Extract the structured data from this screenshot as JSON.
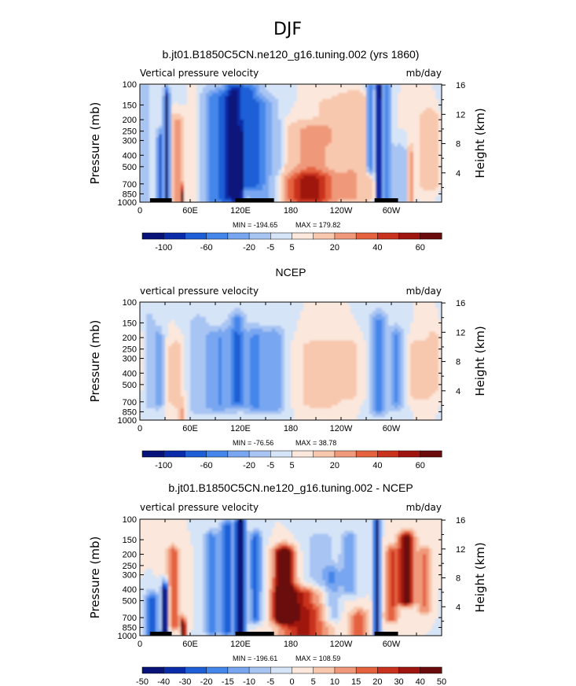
{
  "figure": {
    "title": "DJF"
  },
  "palettes": {
    "standard": [
      "#08137a",
      "#0b2ca8",
      "#1f5fd6",
      "#4586ea",
      "#78a6f0",
      "#a7c4f3",
      "#d6e4f7",
      "#fbe7dc",
      "#f8c8ae",
      "#f0997a",
      "#e5623f",
      "#c9331e",
      "#9f1510",
      "#6b0c0c"
    ],
    "difference": [
      "#08137a",
      "#0b2ca8",
      "#1f5fd6",
      "#4586ea",
      "#78a6f0",
      "#a7c4f3",
      "#d6e4f7",
      "#fbe7dc",
      "#f8c8ae",
      "#f0997a",
      "#e5623f",
      "#c9331e",
      "#9f1510",
      "#6b0c0c"
    ]
  },
  "chart_data": [
    {
      "type": "heatmap",
      "name": "model",
      "title": "b.jt01.B1850C5CN.ne120_g16.tuning.002 (yrs 1860)",
      "variable_label": "Vertical pressure velocity",
      "units": "mb/day",
      "ylabel": "Pressure (mb)",
      "ylabel_right": "Height (km)",
      "pressure_ticks": [
        "100",
        "150",
        "200",
        "250",
        "300",
        "400",
        "500",
        "700",
        "850",
        "1000"
      ],
      "pressure_values": [
        100,
        150,
        200,
        250,
        300,
        400,
        500,
        700,
        850,
        1000
      ],
      "height_ticks": [
        "16",
        "12",
        "8",
        "4"
      ],
      "height_values": [
        16,
        12,
        8,
        4
      ],
      "lon_ticks": [
        "0",
        "60E",
        "120E",
        "180",
        "120W",
        "60W"
      ],
      "lon_values": [
        0,
        60,
        120,
        180,
        240,
        300
      ],
      "xlim": [
        0,
        360
      ],
      "ylim": [
        1000,
        100
      ],
      "min_label": "MIN = -194.65",
      "max_label": "MAX = 179.82",
      "colorbar": {
        "palette": "standard",
        "labels": [
          "-100",
          "-60",
          "-20",
          "-5",
          "5",
          "20",
          "40",
          "60"
        ],
        "label_bounds": [
          1,
          3,
          5,
          6,
          7,
          9,
          11,
          13
        ]
      },
      "terrain_lon": [
        [
          12,
          38
        ],
        [
          114,
          160
        ],
        [
          280,
          308
        ]
      ],
      "features": [
        {
          "lon": 6,
          "plo": 100,
          "phi": 1000,
          "w": 5,
          "v": -16
        },
        {
          "lon": 24,
          "plo": 300,
          "phi": 1000,
          "w": 3,
          "v": -80
        },
        {
          "lon": 32,
          "plo": 130,
          "phi": 1000,
          "w": 3,
          "v": -110
        },
        {
          "lon": 44,
          "plo": 220,
          "phi": 1000,
          "w": 6,
          "v": 30
        },
        {
          "lon": 51,
          "plo": 850,
          "phi": 1000,
          "w": 2,
          "v": 55
        },
        {
          "lon": 70,
          "plo": 130,
          "phi": 950,
          "w": 10,
          "v": 10
        },
        {
          "lon": 95,
          "plo": 130,
          "phi": 980,
          "w": 20,
          "v": -55
        },
        {
          "lon": 112,
          "plo": 110,
          "phi": 900,
          "w": 10,
          "v": -80
        },
        {
          "lon": 118,
          "plo": 300,
          "phi": 1000,
          "w": 4,
          "v": -130
        },
        {
          "lon": 130,
          "plo": 110,
          "phi": 700,
          "w": 12,
          "v": -60
        },
        {
          "lon": 145,
          "plo": 150,
          "phi": 950,
          "w": 14,
          "v": -40
        },
        {
          "lon": 165,
          "plo": 250,
          "phi": 1000,
          "w": 8,
          "v": -10
        },
        {
          "lon": 205,
          "plo": 250,
          "phi": 900,
          "w": 28,
          "v": 25
        },
        {
          "lon": 222,
          "plo": 150,
          "phi": 300,
          "w": 14,
          "v": 6
        },
        {
          "lon": 200,
          "plo": 650,
          "phi": 1000,
          "w": 35,
          "v": 32
        },
        {
          "lon": 255,
          "plo": 140,
          "phi": 900,
          "w": 20,
          "v": 18
        },
        {
          "lon": 275,
          "plo": 100,
          "phi": 500,
          "w": 4,
          "v": -55
        },
        {
          "lon": 285,
          "plo": 100,
          "phi": 1000,
          "w": 3,
          "v": -140
        },
        {
          "lon": 294,
          "plo": 100,
          "phi": 1000,
          "w": 5,
          "v": -50
        },
        {
          "lon": 310,
          "plo": 400,
          "phi": 1000,
          "w": 8,
          "v": -20
        },
        {
          "lon": 323,
          "plo": 400,
          "phi": 1000,
          "w": 3,
          "v": 30
        },
        {
          "lon": 345,
          "plo": 200,
          "phi": 700,
          "w": 10,
          "v": 20
        }
      ]
    },
    {
      "type": "heatmap",
      "name": "obs",
      "title": "NCEP",
      "variable_label": "vertical pressure velocity",
      "units": "mb/day",
      "ylabel": "Pressure (mb)",
      "ylabel_right": "Height (km)",
      "pressure_ticks": [
        "100",
        "150",
        "200",
        "250",
        "300",
        "400",
        "500",
        "700",
        "850",
        "1000"
      ],
      "pressure_values": [
        100,
        150,
        200,
        250,
        300,
        400,
        500,
        700,
        850,
        1000
      ],
      "height_ticks": [
        "16",
        "12",
        "8",
        "4"
      ],
      "height_values": [
        16,
        12,
        8,
        4
      ],
      "lon_ticks": [
        "0",
        "60E",
        "120E",
        "180",
        "120W",
        "60W"
      ],
      "lon_values": [
        0,
        60,
        120,
        180,
        240,
        300
      ],
      "xlim": [
        0,
        360
      ],
      "ylim": [
        1000,
        100
      ],
      "min_label": "MIN = -76.56",
      "max_label": "MAX = 38.78",
      "colorbar": {
        "palette": "standard",
        "labels": [
          "-100",
          "-60",
          "-20",
          "-5",
          "5",
          "20",
          "40",
          "60"
        ],
        "label_bounds": [
          1,
          3,
          5,
          6,
          7,
          9,
          11,
          13
        ]
      },
      "terrain_lon": [],
      "features": [
        {
          "lon": 12,
          "plo": 150,
          "phi": 700,
          "w": 6,
          "v": -12
        },
        {
          "lon": 22,
          "plo": 200,
          "phi": 700,
          "w": 5,
          "v": -28
        },
        {
          "lon": 42,
          "plo": 250,
          "phi": 700,
          "w": 8,
          "v": 10
        },
        {
          "lon": 50,
          "plo": 850,
          "phi": 1000,
          "w": 3,
          "v": 25
        },
        {
          "lon": 70,
          "plo": 150,
          "phi": 800,
          "w": 10,
          "v": -10
        },
        {
          "lon": 95,
          "plo": 200,
          "phi": 750,
          "w": 16,
          "v": -40
        },
        {
          "lon": 116,
          "plo": 150,
          "phi": 700,
          "w": 8,
          "v": -55
        },
        {
          "lon": 138,
          "plo": 200,
          "phi": 750,
          "w": 14,
          "v": -45
        },
        {
          "lon": 160,
          "plo": 200,
          "phi": 750,
          "w": 10,
          "v": -35
        },
        {
          "lon": 215,
          "plo": 250,
          "phi": 700,
          "w": 20,
          "v": 14
        },
        {
          "lon": 248,
          "plo": 250,
          "phi": 600,
          "w": 14,
          "v": 10
        },
        {
          "lon": 285,
          "plo": 150,
          "phi": 800,
          "w": 8,
          "v": -45
        },
        {
          "lon": 305,
          "plo": 200,
          "phi": 700,
          "w": 7,
          "v": -42
        },
        {
          "lon": 335,
          "plo": 250,
          "phi": 600,
          "w": 14,
          "v": 12
        },
        {
          "lon": 350,
          "plo": 200,
          "phi": 500,
          "w": 8,
          "v": 8
        }
      ]
    },
    {
      "type": "heatmap",
      "name": "diff",
      "title": "b.jt01.B1850C5CN.ne120_g16.tuning.002 - NCEP",
      "variable_label": "vertical pressure velocity",
      "units": "mb/day",
      "ylabel": "Pressure (mb)",
      "ylabel_right": "Height (km)",
      "pressure_ticks": [
        "100",
        "150",
        "200",
        "250",
        "300",
        "400",
        "500",
        "700",
        "850",
        "1000"
      ],
      "pressure_values": [
        100,
        150,
        200,
        250,
        300,
        400,
        500,
        700,
        850,
        1000
      ],
      "height_ticks": [
        "16",
        "12",
        "8",
        "4"
      ],
      "height_values": [
        16,
        12,
        8,
        4
      ],
      "lon_ticks": [
        "0",
        "60E",
        "120E",
        "180",
        "120W",
        "60W"
      ],
      "lon_values": [
        0,
        60,
        120,
        180,
        240,
        300
      ],
      "xlim": [
        0,
        360
      ],
      "ylim": [
        1000,
        100
      ],
      "min_label": "MIN = -196.61",
      "max_label": "MAX = 108.59",
      "colorbar": {
        "palette": "difference",
        "labels": [
          "-50",
          "-40",
          "-30",
          "-20",
          "-15",
          "-10",
          "-5",
          "0",
          "5",
          "10",
          "15",
          "20",
          "30",
          "40",
          "50"
        ],
        "label_bounds": [
          0,
          1,
          2,
          3,
          4,
          5,
          6,
          7,
          8,
          9,
          10,
          11,
          12,
          13,
          14
        ]
      },
      "terrain_lon": [
        [
          12,
          38
        ],
        [
          114,
          160
        ],
        [
          280,
          308
        ]
      ],
      "features": [
        {
          "lon": 14,
          "plo": 500,
          "phi": 1000,
          "w": 8,
          "v": -25
        },
        {
          "lon": 30,
          "plo": 400,
          "phi": 1000,
          "w": 4,
          "v": -40
        },
        {
          "lon": 40,
          "plo": 200,
          "phi": 800,
          "w": 8,
          "v": 20
        },
        {
          "lon": 52,
          "plo": 850,
          "phi": 1000,
          "w": 3,
          "v": 45
        },
        {
          "lon": 85,
          "plo": 150,
          "phi": 900,
          "w": 8,
          "v": -20
        },
        {
          "lon": 104,
          "plo": 120,
          "phi": 900,
          "w": 8,
          "v": -25
        },
        {
          "lon": 120,
          "plo": 100,
          "phi": 950,
          "w": 5,
          "v": -60
        },
        {
          "lon": 138,
          "plo": 150,
          "phi": 700,
          "w": 8,
          "v": -22
        },
        {
          "lon": 172,
          "plo": 200,
          "phi": 700,
          "w": 12,
          "v": 45
        },
        {
          "lon": 195,
          "plo": 450,
          "phi": 1000,
          "w": 30,
          "v": 26
        },
        {
          "lon": 215,
          "plo": 150,
          "phi": 500,
          "w": 18,
          "v": -8
        },
        {
          "lon": 230,
          "plo": 300,
          "phi": 700,
          "w": 10,
          "v": -12
        },
        {
          "lon": 250,
          "plo": 150,
          "phi": 400,
          "w": 10,
          "v": -14
        },
        {
          "lon": 262,
          "plo": 700,
          "phi": 1000,
          "w": 12,
          "v": 18
        },
        {
          "lon": 283,
          "plo": 100,
          "phi": 1000,
          "w": 3,
          "v": -75
        },
        {
          "lon": 300,
          "plo": 200,
          "phi": 700,
          "w": 8,
          "v": 20
        },
        {
          "lon": 318,
          "plo": 150,
          "phi": 500,
          "w": 10,
          "v": 35
        },
        {
          "lon": 340,
          "plo": 200,
          "phi": 600,
          "w": 8,
          "v": 15
        }
      ]
    }
  ]
}
